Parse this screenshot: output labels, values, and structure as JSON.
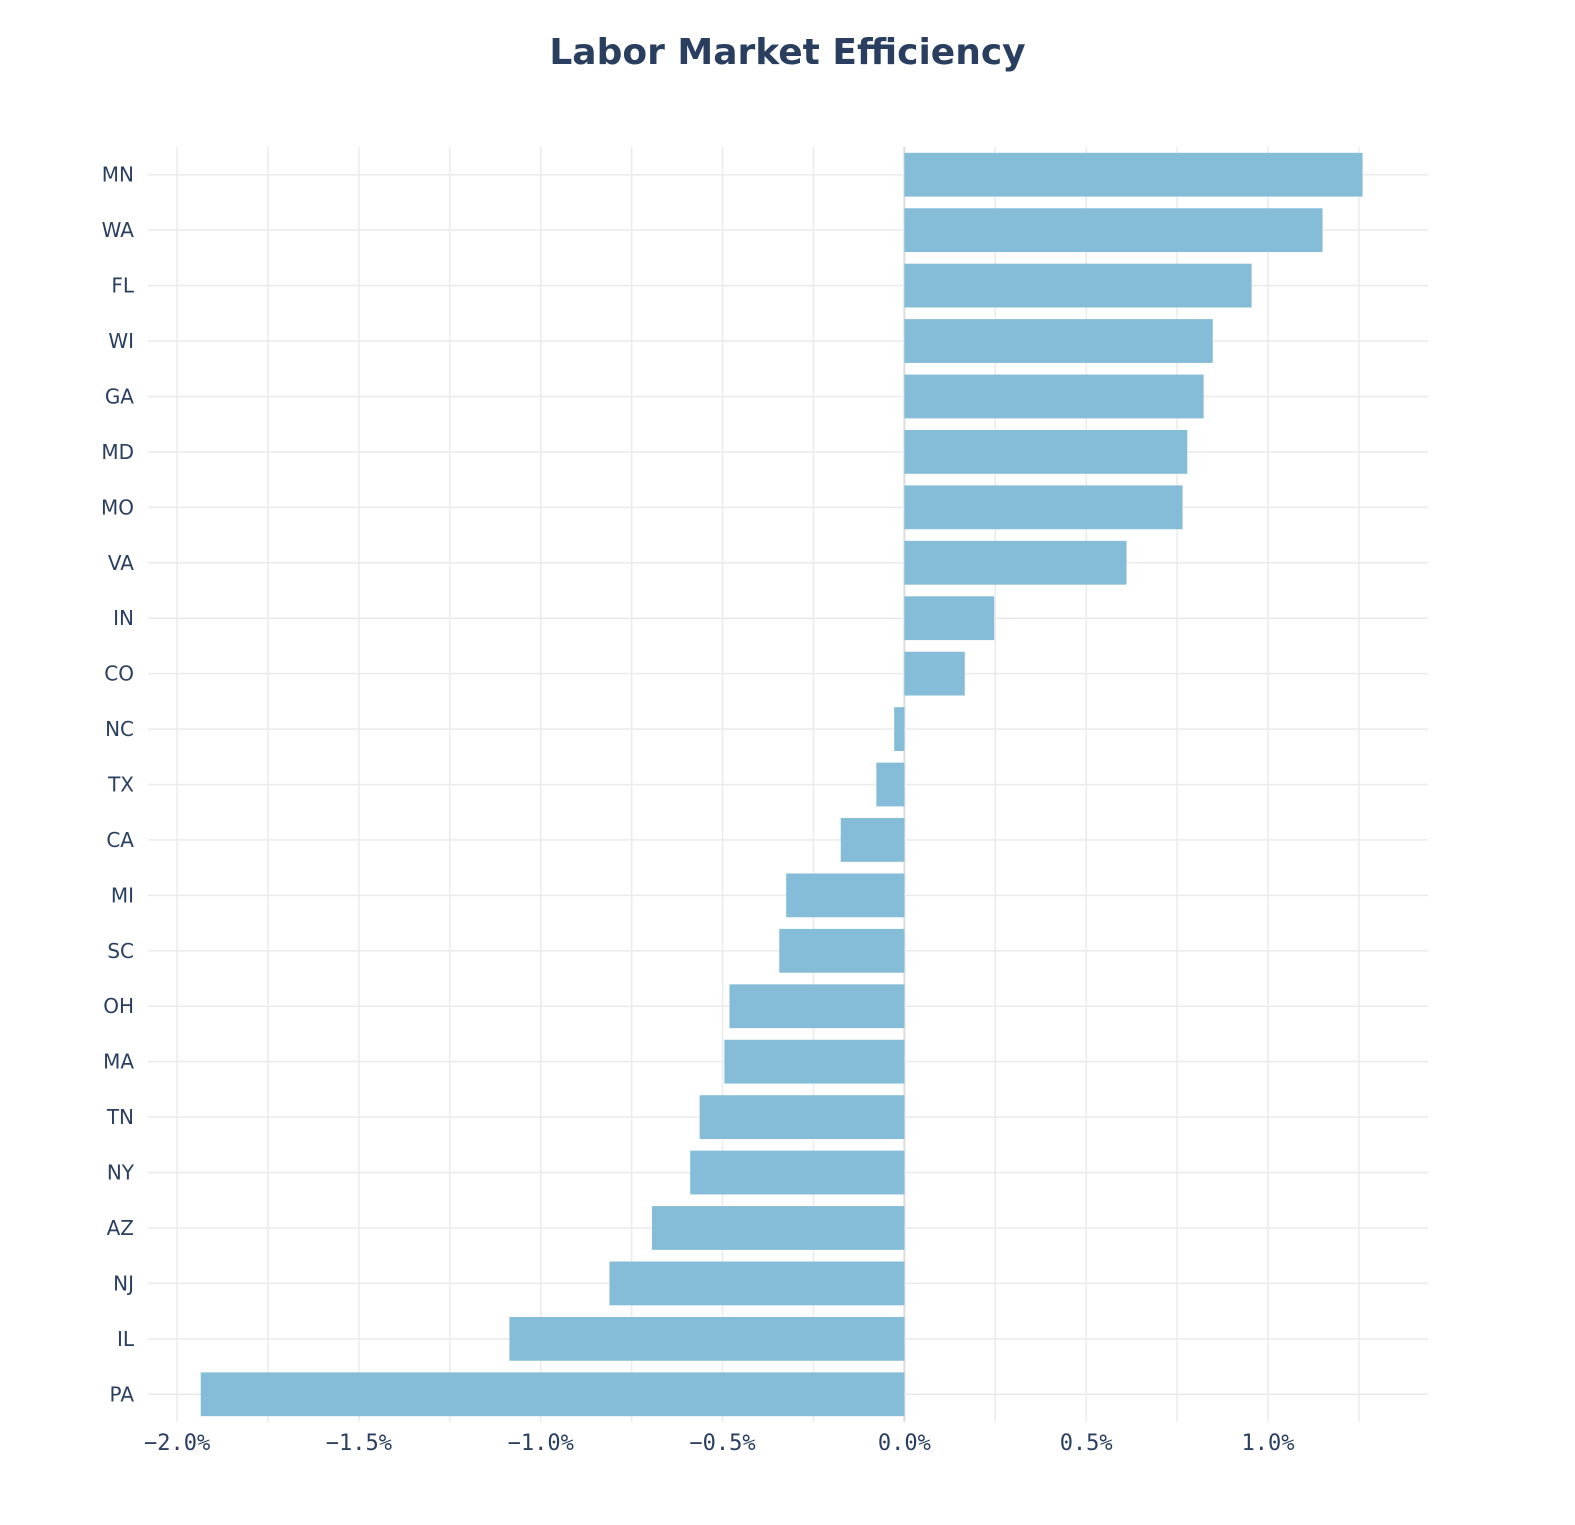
{
  "chart_data": {
    "type": "bar",
    "orientation": "horizontal",
    "title": "Labor Market Efficiency",
    "xlabel": "",
    "ylabel": "",
    "categories": [
      "MN",
      "WA",
      "FL",
      "WI",
      "GA",
      "MD",
      "MO",
      "VA",
      "IN",
      "CO",
      "NC",
      "TX",
      "CA",
      "MI",
      "SC",
      "OH",
      "MA",
      "TN",
      "NY",
      "AZ",
      "NJ",
      "IL",
      "PA"
    ],
    "values": [
      1.26,
      1.15,
      0.955,
      0.848,
      0.823,
      0.778,
      0.765,
      0.611,
      0.247,
      0.166,
      -0.028,
      -0.077,
      -0.175,
      -0.325,
      -0.344,
      -0.481,
      -0.495,
      -0.563,
      -0.589,
      -0.694,
      -0.811,
      -1.086,
      -1.935
    ],
    "xlim": [
      -2.08,
      1.44
    ],
    "xticks": [
      -2.0,
      -1.5,
      -1.0,
      -0.5,
      0.0,
      0.5,
      1.0
    ],
    "xtick_labels": [
      "−2.0%",
      "−1.5%",
      "−1.0%",
      "−0.5%",
      "0.0%",
      "0.5%",
      "1.0%"
    ],
    "grid": true,
    "bar_color": "#85bcd7",
    "text_color": "#2a3f5f",
    "legend": "none"
  }
}
